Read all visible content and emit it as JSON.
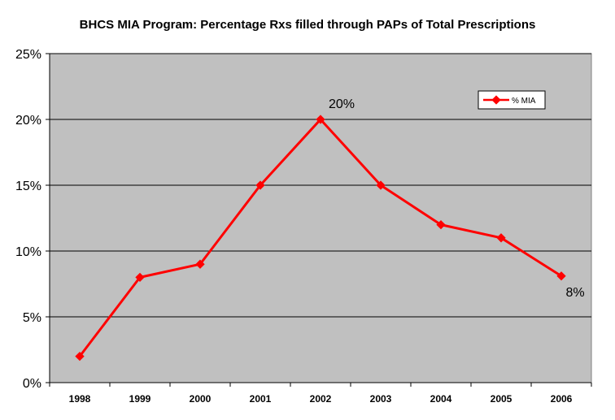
{
  "chart_data": {
    "type": "line",
    "title": "BHCS MIA Program: Percentage Rxs filled through PAPs of Total Prescriptions",
    "xlabel": "",
    "ylabel": "",
    "categories": [
      "1998",
      "1999",
      "2000",
      "2001",
      "2002",
      "2003",
      "2004",
      "2005",
      "2006"
    ],
    "series": [
      {
        "name": "% MIA",
        "values": [
          2,
          8,
          9,
          15,
          20,
          15,
          12,
          11,
          8.1
        ]
      }
    ],
    "ylim": [
      0,
      25
    ],
    "yticks": [
      "0%",
      "5%",
      "10%",
      "15%",
      "20%",
      "25%"
    ],
    "ytick_values": [
      0,
      5,
      10,
      15,
      20,
      25
    ],
    "data_labels": [
      {
        "category": "2002",
        "text": "20%"
      },
      {
        "category": "2006",
        "text": "8%"
      }
    ],
    "grid": true,
    "legend_position": "top-right",
    "colors": {
      "series": "#ff0000",
      "plot_bg": "#c0c0c0",
      "grid": "#000000"
    }
  }
}
